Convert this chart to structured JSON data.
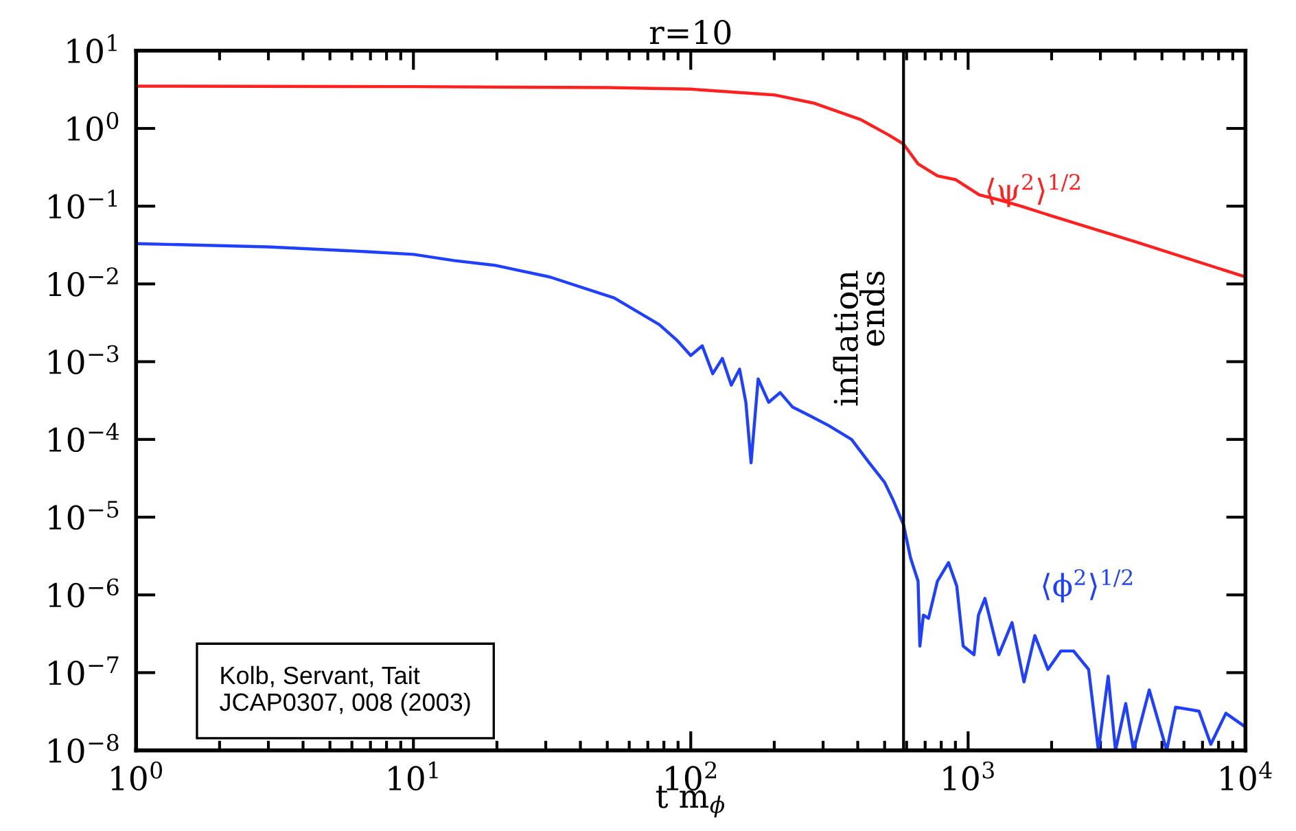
{
  "chart_data": {
    "type": "line",
    "title": "r=10",
    "xlabel": "t m$_{ϕ}$",
    "log": "xy",
    "xlim": [
      1,
      10000
    ],
    "ylim": [
      1e-08,
      10
    ],
    "xticks": [
      {
        "value": 1,
        "label": "10$^{0}$"
      },
      {
        "value": 10,
        "label": "10$^{1}$"
      },
      {
        "value": 100,
        "label": "10$^{2}$"
      },
      {
        "value": 1000,
        "label": "10$^{3}$"
      },
      {
        "value": 10000,
        "label": "10$^{4}$"
      }
    ],
    "yticks": [
      {
        "value": 1e-08,
        "label": "10$^{−8}$"
      },
      {
        "value": 1e-07,
        "label": "10$^{−7}$"
      },
      {
        "value": 1e-06,
        "label": "10$^{−6}$"
      },
      {
        "value": 1e-05,
        "label": "10$^{−5}$"
      },
      {
        "value": 0.0001,
        "label": "10$^{−4}$"
      },
      {
        "value": 0.001,
        "label": "10$^{−3}$"
      },
      {
        "value": 0.01,
        "label": "10$^{−2}$"
      },
      {
        "value": 0.1,
        "label": "10$^{−1}$"
      },
      {
        "value": 1,
        "label": "10$^{0}$"
      },
      {
        "value": 10,
        "label": "10$^{1}$"
      }
    ],
    "grid": false,
    "legend": false,
    "marker": "none",
    "line_style": "solid",
    "series": [
      {
        "name": "⟨ψ$^{2}$⟩$^{1/2}$",
        "color": "#ff2020",
        "x": [
          1,
          10,
          50,
          100,
          200,
          280,
          410,
          515,
          585,
          660,
          776,
          900,
          1096,
          1300,
          1550,
          2000,
          4000,
          10000
        ],
        "values": [
          3.5,
          3.45,
          3.35,
          3.2,
          2.7,
          2.1,
          1.3,
          0.83,
          0.63,
          0.35,
          0.245,
          0.22,
          0.14,
          0.12,
          0.1,
          0.075,
          0.035,
          0.0123
        ]
      },
      {
        "name": "⟨ϕ$^{2}$⟩$^{1/2}$",
        "color": "#2040ff",
        "x": [
          1,
          3,
          6.8,
          10,
          14,
          19.6,
          31,
          53,
          77,
          89,
          100,
          110,
          120,
          130,
          140,
          150,
          158,
          165,
          175,
          191,
          210,
          233,
          270,
          315,
          380,
          440,
          500,
          535,
          585,
          620,
          660,
          670,
          690,
          720,
          775,
          850,
          910,
          960,
          1050,
          1090,
          1150,
          1290,
          1440,
          1590,
          1740,
          1940,
          2160,
          2400,
          2720,
          2950,
          3200,
          3400,
          3700,
          3950,
          4500,
          5200,
          5600,
          6800,
          7500,
          8500,
          10000
        ],
        "values": [
          0.033,
          0.03,
          0.026,
          0.024,
          0.02,
          0.0174,
          0.0123,
          0.0066,
          0.003,
          0.0019,
          0.0012,
          0.0016,
          0.0007,
          0.0011,
          0.0005,
          0.0008,
          0.0003,
          5e-05,
          0.0006,
          0.0003,
          0.0004,
          0.00026,
          0.0002,
          0.00015,
          0.0001,
          5e-05,
          2.8e-05,
          1.7e-05,
          8e-06,
          3e-06,
          1.5e-06,
          2.2e-07,
          5.5e-07,
          5e-07,
          1.5e-06,
          2.6e-06,
          1.3e-06,
          2.2e-07,
          1.7e-07,
          5.5e-07,
          9e-07,
          1.7e-07,
          4.4e-07,
          7.6e-08,
          3e-07,
          1.1e-07,
          1.9e-07,
          1.9e-07,
          1.1e-07,
          1e-08,
          9e-08,
          1e-08,
          4e-08,
          1e-08,
          6e-08,
          1e-08,
          3.6e-08,
          3.2e-08,
          1.2e-08,
          3e-08,
          2e-08
        ]
      }
    ],
    "ref_lines": [
      {
        "axis": "x",
        "value": 585,
        "label": "inflation\nends",
        "color": "#000000"
      }
    ],
    "annotations": [
      "Kolb, Servant, Tait\nJCAP0307, 008 (2003)"
    ]
  }
}
